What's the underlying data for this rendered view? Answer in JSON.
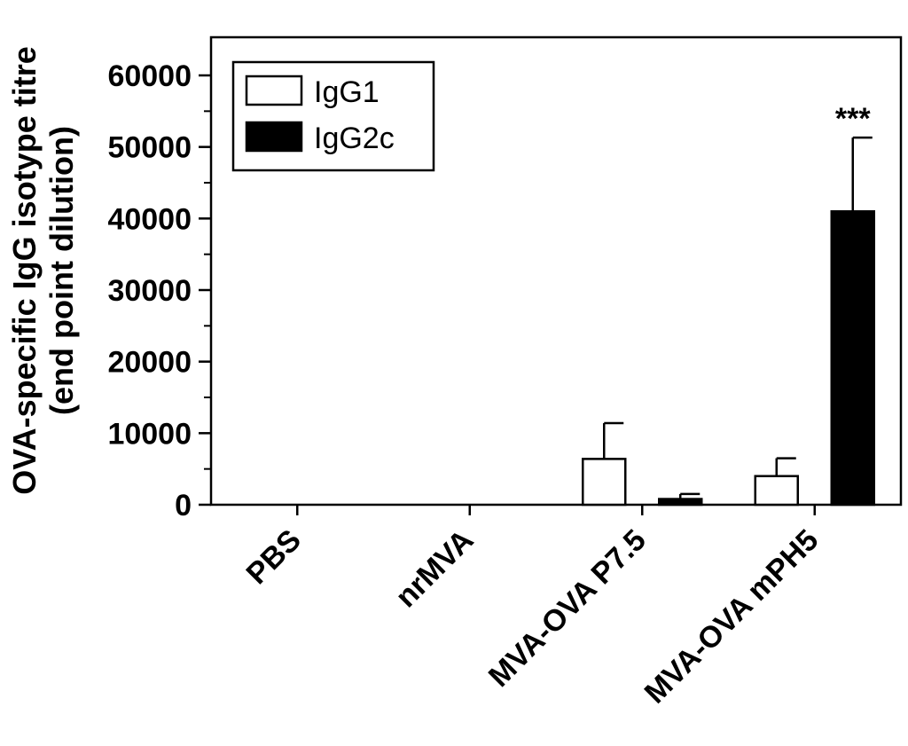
{
  "chart_data": {
    "type": "bar",
    "categories": [
      "PBS",
      "nrMVA",
      "MVA-OVA P7.5",
      "MVA-OVA mPH5"
    ],
    "series": [
      {
        "name": "IgG1",
        "values": [
          0,
          0,
          6400,
          4000
        ],
        "error": [
          0,
          0,
          5000,
          2500
        ],
        "color": "#ffffff"
      },
      {
        "name": "IgG2c",
        "values": [
          0,
          0,
          800,
          41000
        ],
        "error": [
          0,
          0,
          700,
          10300
        ],
        "color": "#000000"
      }
    ],
    "ylabel_line1": "OVA-specific IgG isotype titre",
    "ylabel_line2": "(end point dilution)",
    "ylim": [
      0,
      60000
    ],
    "yticks": [
      0,
      10000,
      20000,
      30000,
      40000,
      50000,
      60000
    ],
    "ytick_labels": [
      "0",
      "10000",
      "20000",
      "30000",
      "40000",
      "50000",
      "60000"
    ],
    "legend_position": "top-left",
    "annotations": [
      {
        "category": "MVA-OVA mPH5",
        "series": "IgG2c",
        "text": "***"
      }
    ],
    "grid": false
  }
}
